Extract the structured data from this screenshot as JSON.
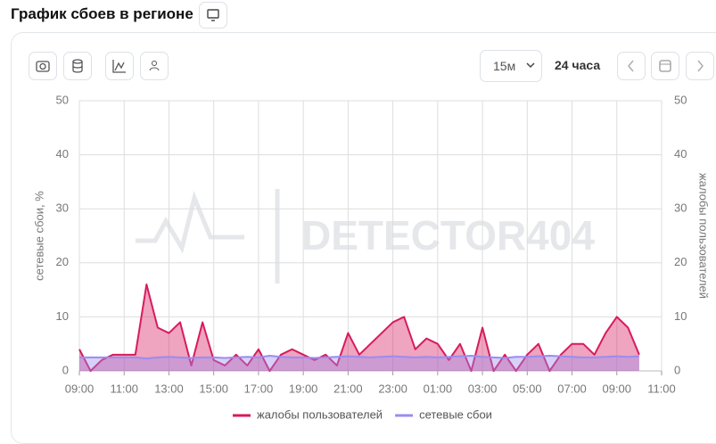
{
  "header": {
    "title": "График сбоев в регионе"
  },
  "toolbar": {
    "interval": "15м",
    "period": "24 часа"
  },
  "chart_data": {
    "type": "line",
    "watermark": "DETECTOR404",
    "y_label": "сетевые сбои, %",
    "y2_label": "жалобы пользователей",
    "categories": [
      "09:00",
      null,
      null,
      null,
      "11:00",
      null,
      null,
      null,
      "13:00",
      null,
      null,
      null,
      "15:00",
      null,
      null,
      null,
      "17:00",
      null,
      null,
      null,
      "19:00",
      null,
      null,
      null,
      "21:00",
      null,
      null,
      null,
      "23:00",
      null,
      null,
      null,
      "01:00",
      null,
      null,
      null,
      "03:00",
      null,
      null,
      null,
      "05:00",
      null,
      null,
      null,
      "07:00",
      null,
      null,
      null,
      "09:00",
      null,
      null,
      null,
      "11:00"
    ],
    "series": [
      {
        "name": "жалобы пользователей",
        "color": "#d81b5e",
        "axis": "y2",
        "values": [
          4,
          0,
          2,
          3,
          3,
          3,
          16,
          8,
          7,
          9,
          1,
          9,
          2,
          1,
          3,
          1,
          4,
          0,
          3,
          4,
          3,
          2,
          3,
          1,
          7,
          3,
          5,
          7,
          9,
          10,
          4,
          6,
          5,
          2,
          5,
          0,
          8,
          0,
          3,
          0,
          3,
          5,
          0,
          3,
          5,
          5,
          3,
          7,
          10,
          8,
          3,
          null,
          null
        ]
      },
      {
        "name": "сетевые сбои",
        "color": "#9a8cf0",
        "values": [
          2.5,
          2.5,
          2.5,
          2.5,
          2.5,
          2.5,
          2.3,
          2.5,
          2.6,
          2.5,
          2.4,
          2.5,
          2.5,
          2.4,
          2.5,
          2.6,
          2.5,
          2.8,
          2.6,
          2.5,
          2.5,
          2.4,
          2.5,
          2.6,
          2.7,
          2.6,
          2.5,
          2.6,
          2.7,
          2.6,
          2.5,
          2.6,
          2.5,
          2.6,
          2.7,
          2.8,
          2.6,
          2.5,
          2.4,
          2.6,
          2.6,
          2.7,
          2.8,
          2.7,
          2.6,
          2.5,
          2.5,
          2.6,
          2.7,
          2.6,
          2.7,
          null,
          null
        ]
      }
    ],
    "ylim": [
      0,
      50
    ],
    "yticks": [
      0,
      10,
      20,
      30,
      40,
      50
    ],
    "y2lim": [
      0,
      50
    ],
    "y2ticks": [
      0,
      10,
      20,
      30,
      40,
      50
    ],
    "grid": true,
    "legend": "bottom"
  }
}
